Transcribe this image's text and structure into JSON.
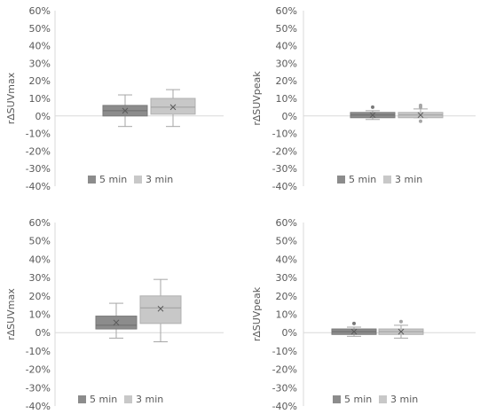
{
  "chart_data": [
    {
      "type": "box",
      "ylabel": "r∆SUVmax",
      "ylim": [
        -40,
        60
      ],
      "yticks": [
        "-40%",
        "-30%",
        "-20%",
        "-10%",
        "0%",
        "10%",
        "20%",
        "30%",
        "40%",
        "50%",
        "60%"
      ],
      "legend": "bottom",
      "series": [
        {
          "name": "5 min",
          "color": "#8c8c8c",
          "min": -6,
          "q1": 0,
          "median": 3,
          "q3": 6,
          "max": 12,
          "mean": 3,
          "outliers": []
        },
        {
          "name": "3 min",
          "color": "#c8c8c8",
          "min": -6,
          "q1": 1,
          "median": 5,
          "q3": 10,
          "max": 15,
          "mean": 5,
          "outliers": []
        }
      ]
    },
    {
      "type": "box",
      "ylabel": "r∆SUVpeak",
      "ylim": [
        -40,
        60
      ],
      "yticks": [
        "-40%",
        "-30%",
        "-20%",
        "-10%",
        "0%",
        "10%",
        "20%",
        "30%",
        "40%",
        "50%",
        "60%"
      ],
      "legend": "bottom",
      "series": [
        {
          "name": "5 min",
          "color": "#8c8c8c",
          "min": -2,
          "q1": -1,
          "median": 0.5,
          "q3": 2,
          "max": 3,
          "mean": 0.5,
          "outliers": [
            5
          ]
        },
        {
          "name": "3 min",
          "color": "#c8c8c8",
          "min": -1,
          "q1": -1,
          "median": 0.5,
          "q3": 2,
          "max": 4,
          "mean": 0.5,
          "outliers": [
            6,
            5,
            -3
          ]
        }
      ]
    },
    {
      "type": "box",
      "ylabel": "r∆SUVmax",
      "ylim": [
        -40,
        60
      ],
      "yticks": [
        "-40%",
        "-30%",
        "-20%",
        "-10%",
        "0%",
        "10%",
        "20%",
        "30%",
        "40%",
        "50%",
        "60%"
      ],
      "legend": "bottom",
      "series": [
        {
          "name": "5 min",
          "color": "#8c8c8c",
          "min": -3,
          "q1": 2,
          "median": 4,
          "q3": 9,
          "max": 16,
          "mean": 5.5,
          "outliers": []
        },
        {
          "name": "3 min",
          "color": "#c8c8c8",
          "min": -5,
          "q1": 5,
          "median": 13.5,
          "q3": 20,
          "max": 29,
          "mean": 13,
          "outliers": []
        }
      ]
    },
    {
      "type": "box",
      "ylabel": "r∆SUVpeak",
      "ylim": [
        -40,
        60
      ],
      "yticks": [
        "-40%",
        "-30%",
        "-20%",
        "-10%",
        "0%",
        "10%",
        "20%",
        "30%",
        "40%",
        "50%",
        "60%"
      ],
      "legend": "bottom",
      "series": [
        {
          "name": "5 min",
          "color": "#8c8c8c",
          "min": -2,
          "q1": -1,
          "median": 0.5,
          "q3": 2,
          "max": 3,
          "mean": 0.5,
          "outliers": [
            5
          ]
        },
        {
          "name": "3 min",
          "color": "#c8c8c8",
          "min": -3,
          "q1": -1,
          "median": 0.5,
          "q3": 2,
          "max": 4,
          "mean": 0.5,
          "outliers": [
            6
          ]
        }
      ]
    }
  ]
}
